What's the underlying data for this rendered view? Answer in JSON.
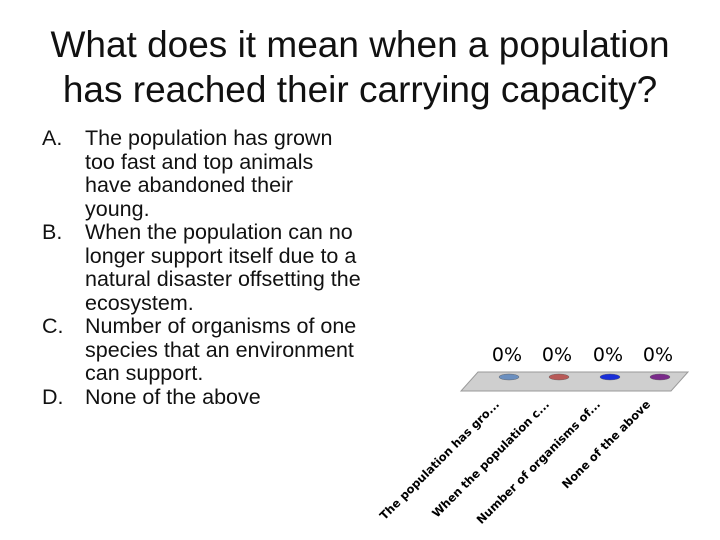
{
  "question": {
    "title_line1": "What does it mean when a population",
    "title_line2": "has reached their carrying capacity?"
  },
  "answers": [
    {
      "letter": "A.",
      "text": "The population has grown too fast and top animals have abandoned their young."
    },
    {
      "letter": "B.",
      "text": "When the population  can no longer support itself due to a natural disaster offsetting the ecosystem."
    },
    {
      "letter": "C.",
      "text": "Number of organisms of one species that an environment can support."
    },
    {
      "letter": "D.",
      "text": "None of the above"
    }
  ],
  "chart_data": {
    "type": "bar",
    "categories": [
      "The population has gro...",
      "When the population c...",
      "Number of organisms of...",
      "None of the above"
    ],
    "values": [
      0,
      0,
      0,
      0
    ],
    "data_labels": [
      "0%",
      "0%",
      "0%",
      "0%"
    ],
    "ylim": [
      0,
      100
    ],
    "colors": [
      "#6b8fbf",
      "#b85a58",
      "#1a2fd8",
      "#7a2a8a"
    ],
    "grid": false,
    "legend": "none"
  }
}
